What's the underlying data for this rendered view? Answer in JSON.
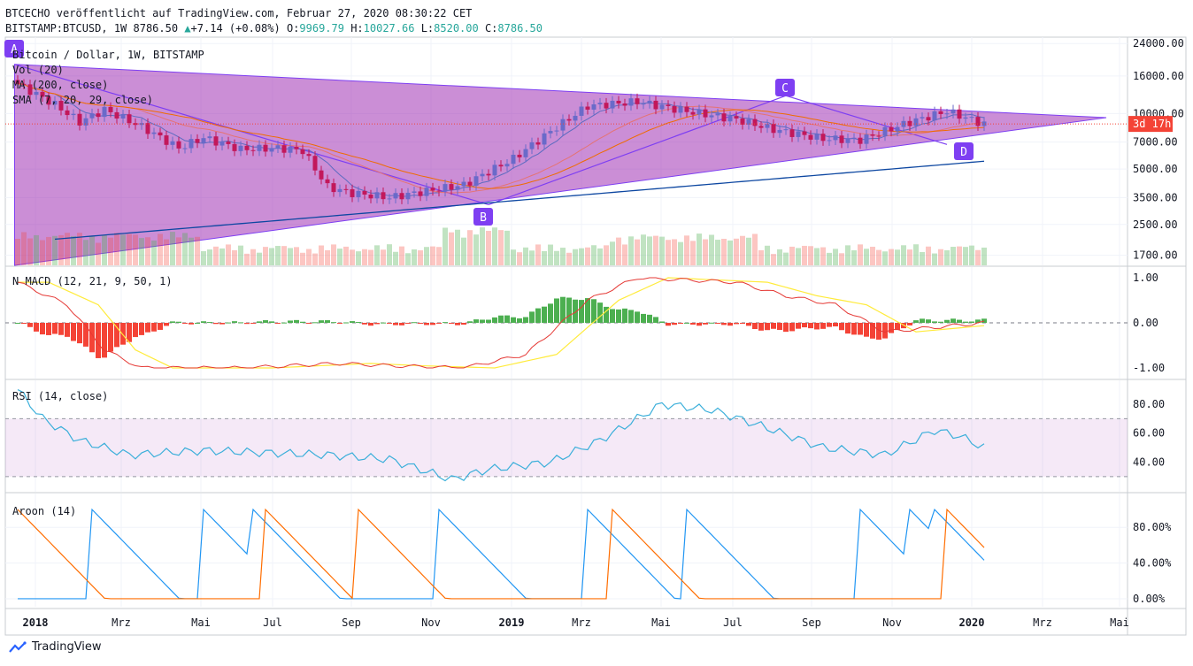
{
  "header": {
    "line1": "BTCECHO veröffentlicht auf TradingView.com, Februar 27, 2020 08:30:22 CET",
    "symbol": "BITSTAMP:BTCUSD, 1W 8786.50",
    "change": "+7.14 (+0.08%)",
    "o_label": "O:",
    "o_value": "9969.79",
    "h_label": "H:",
    "h_value": "10027.66",
    "l_label": "L:",
    "l_value": "8520.00",
    "c_label": "C:",
    "c_value": "8786.50"
  },
  "brand": "TradingView",
  "colors": {
    "purple": "#9c27b0",
    "label_purple": "#7e3ff2",
    "up": "#6a6ac9",
    "down": "#c2185b",
    "macd_up": "#4caf50",
    "macd_down": "#f44336",
    "rsi": "#3bafda",
    "aroon_up": "#2196f3",
    "aroon_down": "#ff6d00"
  },
  "chart_data": [
    {
      "type": "candlestick",
      "title": "Bitcoin / Dollar, 1W, BITSTAMP",
      "legend": [
        "Vol (20)",
        "MA (200, close)",
        "SMA (7, 20, 29, close)"
      ],
      "y_scale": "log",
      "ylim": [
        1500,
        26000
      ],
      "y_ticks": [
        "24000.00",
        "16000.00",
        "10000.00",
        "7000.00",
        "5000.00",
        "3500.00",
        "2500.00",
        "1700.00"
      ],
      "x_ticks": [
        "2018",
        "Mrz",
        "Mai",
        "Jul",
        "Sep",
        "Nov",
        "2019",
        "Mrz",
        "Mai",
        "Jul",
        "Sep",
        "Nov",
        "2020",
        "Mrz",
        "Mai"
      ],
      "last_price_label": "3d 17h",
      "pattern_labels": [
        "A",
        "B",
        "C",
        "D"
      ],
      "ohlc_close_sample": [
        14000,
        11500,
        8900,
        9500,
        7500,
        6900,
        6500,
        7200,
        6400,
        4200,
        3700,
        3600,
        3750,
        4100,
        5300,
        8000,
        10800,
        11300,
        10500,
        9600,
        8000,
        7200,
        7300,
        9200,
        10200,
        8786.5
      ]
    },
    {
      "type": "line",
      "title": "N MACD (12, 21, 9, 50, 1)",
      "ylim": [
        -1.1,
        1.1
      ],
      "y_ticks": [
        "1.00",
        "0.00",
        "-1.00"
      ]
    },
    {
      "type": "line",
      "title": "RSI (14, close)",
      "ylim": [
        22,
        94
      ],
      "y_ticks": [
        "80.00",
        "60.00",
        "40.00"
      ],
      "band": [
        30,
        70
      ]
    },
    {
      "type": "line",
      "title": "Aroon (14)",
      "ylim": [
        -5,
        108
      ],
      "y_ticks": [
        "80.00%",
        "40.00%",
        "0.00%"
      ]
    }
  ]
}
